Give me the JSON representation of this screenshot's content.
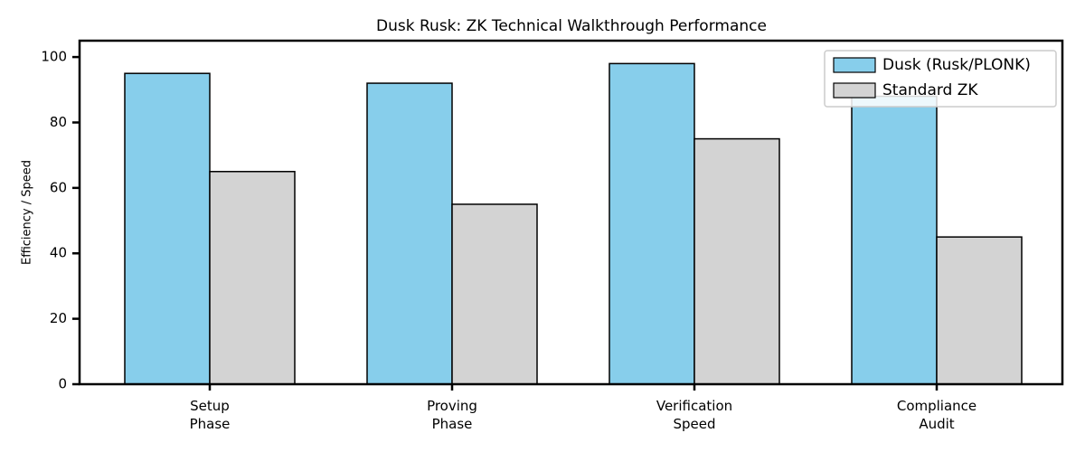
{
  "chart_data": {
    "type": "bar",
    "title": "Dusk Rusk: ZK Technical Walkthrough Performance",
    "y_label": "Efficiency / Speed",
    "categories": [
      "Setup\nPhase",
      "Proving\nPhase",
      "Verification\nSpeed",
      "Compliance\nAudit"
    ],
    "series": [
      {
        "name": "Dusk (Rusk/PLONK)",
        "color": "#87ceeb",
        "values": [
          95,
          92,
          98,
          88
        ]
      },
      {
        "name": "Standard ZK",
        "color": "#d3d3d3",
        "values": [
          65,
          55,
          75,
          45
        ]
      }
    ],
    "ylim": [
      0,
      105
    ],
    "yticks": [
      0,
      20,
      40,
      60,
      80,
      100
    ],
    "legend": "upper right"
  }
}
